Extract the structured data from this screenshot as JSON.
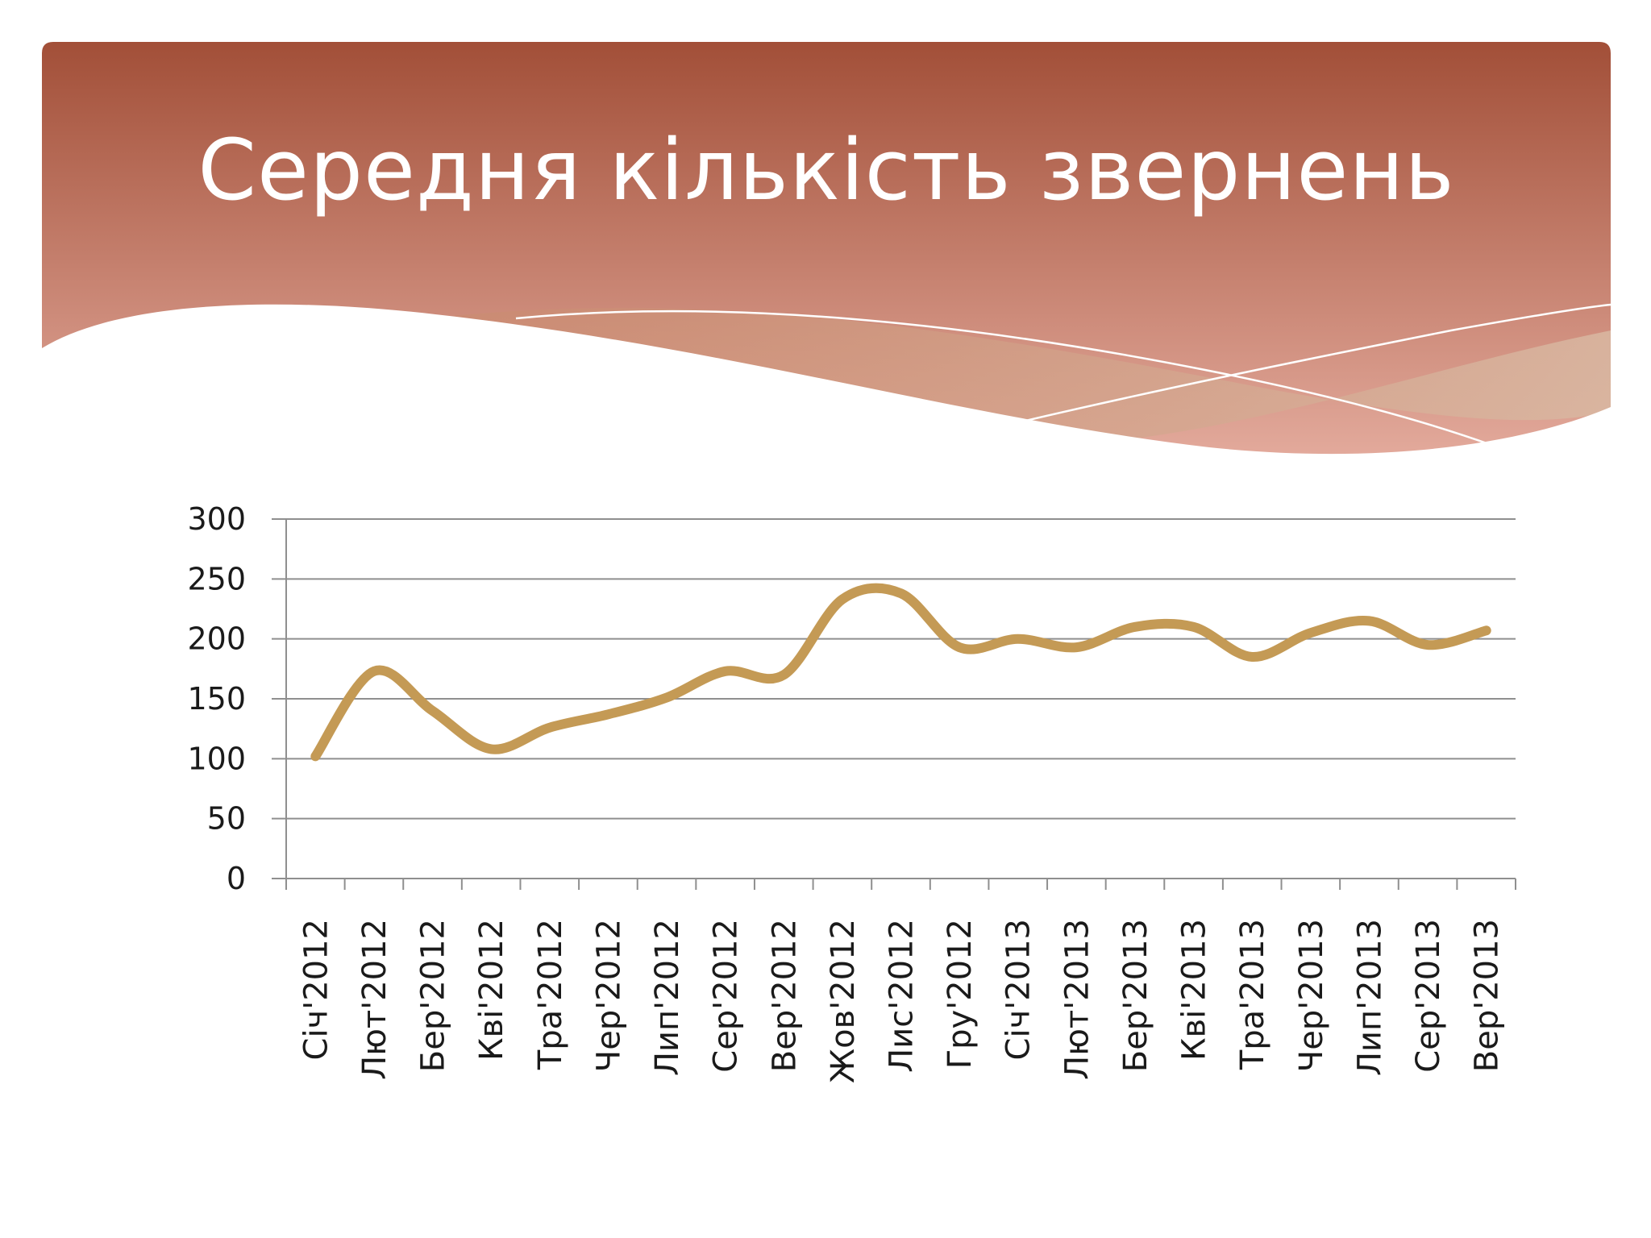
{
  "slide": {
    "title": "Середня кількість звернень"
  },
  "colors": {
    "header_top": "#a24f38",
    "header_bottom": "#e3aa9c",
    "line": "#c49a55",
    "gridline": "#8f8f8f",
    "axis": "#8f8f8f"
  },
  "chart_data": {
    "type": "line",
    "title": "",
    "xlabel": "",
    "ylabel": "",
    "ylim": [
      0,
      300
    ],
    "yticks": [
      0,
      50,
      100,
      150,
      200,
      250,
      300
    ],
    "grid": true,
    "legend": "none",
    "smooth": true,
    "categories": [
      "Січ'2012",
      "Лют'2012",
      "Бер'2012",
      "Кві'2012",
      "Тра'2012",
      "Чер'2012",
      "Лип'2012",
      "Сер'2012",
      "Вер'2012",
      "Жов'2012",
      "Лис'2012",
      "Гру'2012",
      "Січ'2013",
      "Лют'2013",
      "Бер'2013",
      "Кві'2013",
      "Тра'2013",
      "Чер'2013",
      "Лип'2013",
      "Сер'2013",
      "Вер'2013"
    ],
    "series": [
      {
        "values": [
          102,
          173,
          140,
          108,
          126,
          137,
          151,
          173,
          170,
          233,
          238,
          193,
          200,
          193,
          210,
          210,
          185,
          205,
          215,
          195,
          207
        ]
      }
    ]
  }
}
